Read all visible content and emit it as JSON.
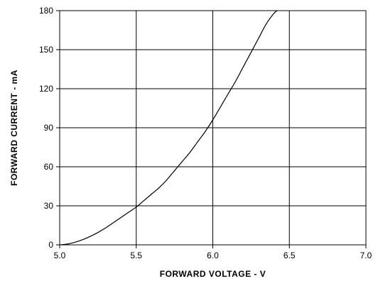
{
  "chart_data": {
    "type": "line",
    "xlabel": "FORWARD  VOLTAGE - V",
    "ylabel": "FORWARD  CURRENT - mA",
    "xlim": [
      5.0,
      7.0
    ],
    "ylim": [
      0,
      180
    ],
    "x_ticks": [
      "5.0",
      "5.5",
      "6.0",
      "6.5",
      "7.0"
    ],
    "y_ticks": [
      "0",
      "30",
      "60",
      "90",
      "120",
      "150",
      "180"
    ],
    "grid": true,
    "series": [
      {
        "x": [
          5.0,
          5.05,
          5.1,
          5.15,
          5.2,
          5.25,
          5.3,
          5.35,
          5.4,
          5.45,
          5.5,
          5.55,
          5.6,
          5.65,
          5.7,
          5.75,
          5.8,
          5.85,
          5.9,
          5.95,
          6.0,
          6.05,
          6.1,
          6.15,
          6.2,
          6.25,
          6.3,
          6.35,
          6.4,
          6.42
        ],
        "y": [
          0,
          0.6,
          2,
          4,
          6.5,
          9.5,
          13,
          17,
          21,
          25,
          29,
          34,
          39,
          44,
          50,
          57,
          64,
          71,
          79,
          87,
          96,
          106,
          116,
          126,
          137,
          148,
          159,
          170,
          178,
          180
        ]
      }
    ],
    "line_color": "#000000"
  }
}
